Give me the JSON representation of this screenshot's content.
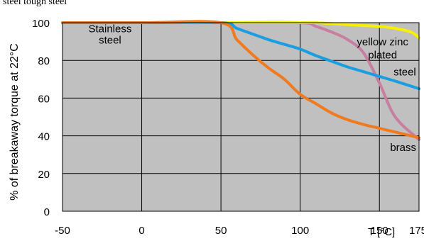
{
  "header_text": "steel    tough steel",
  "chart_data": {
    "type": "line",
    "ylabel": "% of breakaway torque at 22°C",
    "xlabel": "T [°C]",
    "xlim": [
      -50,
      175
    ],
    "ylim": [
      0,
      100
    ],
    "x_ticks": [
      -50,
      0,
      50,
      100,
      150,
      175
    ],
    "x_tick_labels": [
      "-50",
      "0",
      "50",
      "100",
      "150",
      "175"
    ],
    "y_ticks": [
      0,
      20,
      40,
      60,
      80,
      100
    ],
    "y_tick_labels": [
      "0",
      "20",
      "40",
      "60",
      "80",
      "100"
    ],
    "grid": true,
    "plot_background": "#c0c0c0",
    "series": [
      {
        "name": "Stainless steel",
        "color": "#c87e9e",
        "x": [
          -50,
          0,
          50,
          100,
          110,
          120,
          130,
          140,
          150,
          160,
          175
        ],
        "y": [
          100,
          100,
          100,
          100,
          98,
          95,
          91,
          84,
          68,
          50,
          38
        ]
      },
      {
        "name": "yellow zinc plated steel",
        "color": "#f7f000",
        "x": [
          -50,
          0,
          50,
          100,
          110,
          120,
          130,
          140,
          150,
          160,
          170,
          175
        ],
        "y": [
          100,
          100,
          100,
          100,
          100,
          99.5,
          99,
          98.5,
          98,
          97,
          95,
          92
        ]
      },
      {
        "name": "steel",
        "color": "#1a9ee0",
        "x": [
          -50,
          0,
          50,
          60,
          70,
          80,
          90,
          100,
          110,
          120,
          130,
          140,
          150,
          160,
          175
        ],
        "y": [
          100,
          100,
          100,
          97,
          94,
          91,
          88.5,
          86,
          82.5,
          79.5,
          76.5,
          74,
          71.5,
          69,
          65
        ]
      },
      {
        "name": "brass",
        "color": "#f07a20",
        "x": [
          -50,
          0,
          50,
          60,
          70,
          80,
          90,
          100,
          110,
          120,
          130,
          140,
          150,
          160,
          175
        ],
        "y": [
          100,
          100,
          100,
          91,
          83,
          76,
          70,
          62,
          57,
          52,
          48.5,
          46,
          44,
          42,
          39
        ]
      }
    ],
    "annotations": [
      {
        "text": "Stainless",
        "series": "Stainless steel",
        "x": -20,
        "y": 95
      },
      {
        "text": "steel",
        "series": "Stainless steel",
        "x": -20,
        "y": 89
      },
      {
        "text": "yellow zinc",
        "series": "yellow zinc plated steel",
        "x": 152,
        "y": 88
      },
      {
        "text": "plated",
        "series": "yellow zinc plated steel",
        "x": 152,
        "y": 81
      },
      {
        "text": "steel",
        "series": "steel",
        "x": 166,
        "y": 72
      },
      {
        "text": "brass",
        "series": "brass",
        "x": 165,
        "y": 32
      }
    ]
  }
}
